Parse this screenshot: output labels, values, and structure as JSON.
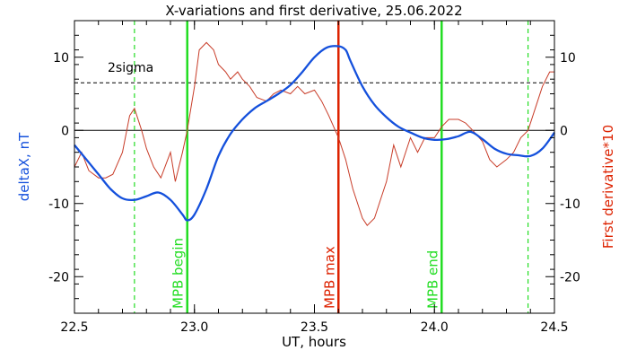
{
  "chart_data": {
    "type": "line",
    "title": "X-variations and first derivative, 25.06.2022",
    "xlabel": "UT, hours",
    "ylabel_left": "deltaX, nT",
    "ylabel_right": "First derivative*10",
    "xlim": [
      22.5,
      24.5
    ],
    "ylim": [
      -25,
      15
    ],
    "x_ticks": [
      22.5,
      23.0,
      23.5,
      24.0,
      24.5
    ],
    "x_tick_labels": [
      "22.5",
      "23.0",
      "23.5",
      "24.0",
      "24.5"
    ],
    "y_ticks": [
      10,
      0,
      -10,
      -20
    ],
    "y_tick_labels": [
      "10",
      "0",
      "-10",
      "-20"
    ],
    "colors": {
      "deltaX": "#1450dc",
      "derivative": "#c83c28",
      "mpb_lines": "#22dd22",
      "mpb_max": "#dd2200",
      "threshold": "#000000"
    },
    "threshold": {
      "value": 6.5,
      "label": "2sigma"
    },
    "zero_line": 0,
    "vertical_markers": [
      {
        "x": 22.75,
        "style": "dashed",
        "color": "#22dd22",
        "label": ""
      },
      {
        "x": 22.97,
        "style": "solid",
        "color": "#22dd22",
        "label": "MPB begin"
      },
      {
        "x": 23.6,
        "style": "solid",
        "color": "#dd2200",
        "label": "MPB max"
      },
      {
        "x": 24.03,
        "style": "solid",
        "color": "#22dd22",
        "label": "MPB end"
      },
      {
        "x": 24.39,
        "style": "dashed",
        "color": "#22dd22",
        "label": ""
      }
    ],
    "series": [
      {
        "name": "deltaX",
        "x": [
          22.5,
          22.55,
          22.6,
          22.65,
          22.7,
          22.75,
          22.8,
          22.85,
          22.9,
          22.95,
          22.97,
          23.0,
          23.05,
          23.1,
          23.15,
          23.2,
          23.25,
          23.3,
          23.35,
          23.4,
          23.45,
          23.5,
          23.55,
          23.6,
          23.63,
          23.65,
          23.7,
          23.75,
          23.8,
          23.85,
          23.9,
          23.95,
          24.0,
          24.05,
          24.1,
          24.15,
          24.2,
          24.25,
          24.3,
          24.35,
          24.4,
          24.45,
          24.5
        ],
        "y": [
          -2,
          -4,
          -6,
          -8,
          -9.3,
          -9.5,
          -9,
          -8.5,
          -9.5,
          -11.5,
          -12.3,
          -11.5,
          -8,
          -3.5,
          -0.5,
          1.5,
          3,
          4,
          5,
          6.2,
          8,
          10,
          11.3,
          11.5,
          11,
          9.5,
          6,
          3.5,
          1.8,
          0.5,
          -0.3,
          -1,
          -1.3,
          -1.2,
          -0.8,
          -0.2,
          -1.2,
          -2.5,
          -3.2,
          -3.4,
          -3.5,
          -2.5,
          -0.3
        ]
      },
      {
        "name": "First derivative*10",
        "x": [
          22.5,
          22.53,
          22.56,
          22.6,
          22.63,
          22.66,
          22.7,
          22.73,
          22.75,
          22.78,
          22.8,
          22.83,
          22.86,
          22.9,
          22.92,
          22.95,
          22.97,
          23.0,
          23.02,
          23.05,
          23.08,
          23.1,
          23.13,
          23.15,
          23.18,
          23.2,
          23.23,
          23.26,
          23.3,
          23.33,
          23.36,
          23.4,
          23.43,
          23.46,
          23.5,
          23.53,
          23.56,
          23.6,
          23.63,
          23.66,
          23.7,
          23.72,
          23.75,
          23.78,
          23.8,
          23.83,
          23.86,
          23.9,
          23.93,
          23.96,
          24.0,
          24.03,
          24.06,
          24.1,
          24.13,
          24.16,
          24.2,
          24.23,
          24.26,
          24.3,
          24.33,
          24.36,
          24.39,
          24.42,
          24.45,
          24.48,
          24.5
        ],
        "y": [
          -5,
          -3,
          -5.5,
          -6.5,
          -6.5,
          -6,
          -3,
          2,
          3,
          0,
          -2.5,
          -5,
          -6.5,
          -3,
          -7,
          -3,
          0,
          6,
          11,
          12,
          11,
          9,
          8,
          7,
          8,
          7,
          6,
          4.5,
          4,
          5,
          5.5,
          5,
          6,
          5,
          5.5,
          4,
          2,
          -1,
          -4,
          -8,
          -12,
          -13,
          -12,
          -9,
          -7,
          -2,
          -5,
          -1,
          -3,
          -1,
          -1,
          0.5,
          1.5,
          1.5,
          1,
          0,
          -1.5,
          -4,
          -5,
          -4,
          -3,
          -1,
          0,
          3,
          6,
          8,
          8
        ]
      }
    ]
  }
}
